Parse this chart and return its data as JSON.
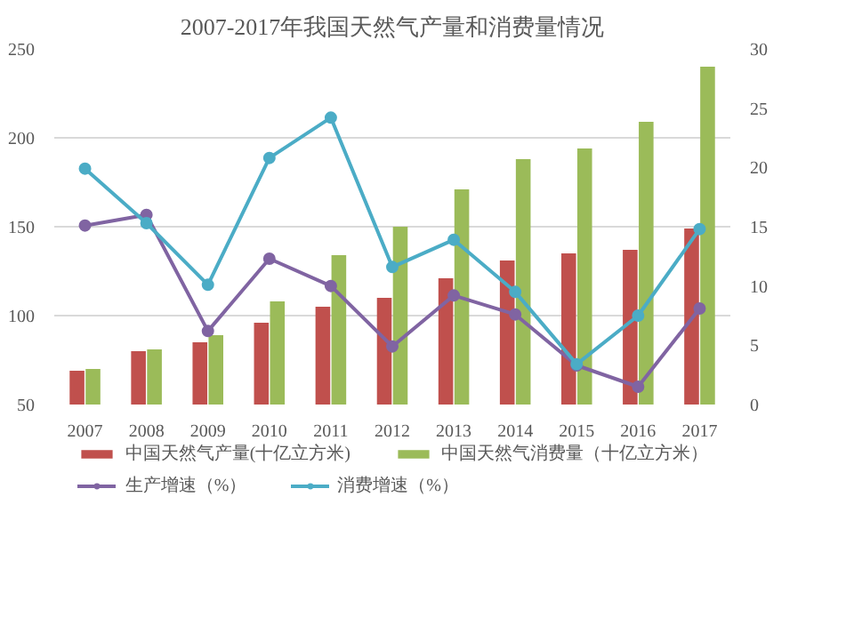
{
  "chart_data": {
    "type": "bar",
    "title": "2007-2017年我国天然气产量和消费量情况",
    "categories": [
      "2007",
      "2008",
      "2009",
      "2010",
      "2011",
      "2012",
      "2013",
      "2014",
      "2015",
      "2016",
      "2017"
    ],
    "series": [
      {
        "name": "中国天然气产量(十亿立方米)",
        "color": "#c0504d",
        "values": [
          69,
          80,
          85,
          96,
          105,
          110,
          121,
          131,
          135,
          137,
          149
        ]
      },
      {
        "name": "中国天然气消费量（十亿立方米）",
        "color": "#9bbb59",
        "values": [
          70,
          81,
          89,
          108,
          134,
          150,
          171,
          188,
          194,
          209,
          240
        ]
      },
      {
        "name": "生产增速（%）",
        "type": "line",
        "axis": "y2",
        "color": "#8064a2",
        "values": [
          15.1,
          16.0,
          6.2,
          12.3,
          10.0,
          4.9,
          9.2,
          7.6,
          3.3,
          1.5,
          8.1
        ]
      },
      {
        "name": "消费增速（%）",
        "type": "line",
        "axis": "y2",
        "color": "#4bacc6",
        "values": [
          19.9,
          15.3,
          10.1,
          20.8,
          24.2,
          11.6,
          13.9,
          9.5,
          3.4,
          7.5,
          14.8
        ]
      }
    ],
    "ylim": [
      50,
      250
    ],
    "yticks": [
      50,
      100,
      150,
      200,
      250
    ],
    "y2lim": [
      0,
      30
    ],
    "y2ticks": [
      0,
      5,
      10,
      15,
      20,
      25,
      30
    ],
    "grid": "y",
    "legend": "bottom",
    "marker": "circle",
    "line_style": "solid"
  }
}
